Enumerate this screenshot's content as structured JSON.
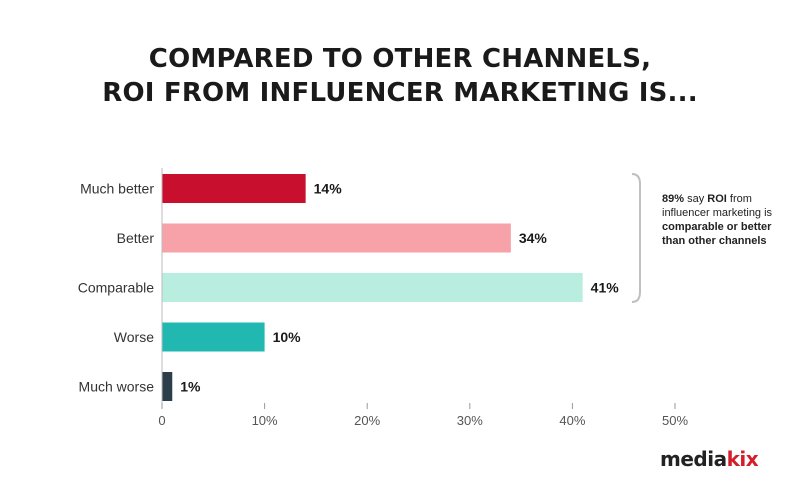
{
  "title_lines": [
    "COMPARED TO OTHER CHANNELS,",
    "ROI FROM INFLUENCER MARKETING IS..."
  ],
  "callout": {
    "bold_1": "89%",
    "text_1": " say ",
    "bold_2": "ROI",
    "text_2": " from influencer marketing is ",
    "bold_3": "comparable or better than other channels"
  },
  "logo": {
    "part1": "media",
    "part2": "kix"
  },
  "colors": {
    "much_better": "#c8102e",
    "better": "#f7a1a8",
    "comparable": "#b8ede0",
    "worse": "#22b8b2",
    "much_worse": "#2c3e4a",
    "bracket": "#c0c0c0"
  },
  "chart_data": {
    "type": "bar",
    "orientation": "horizontal",
    "categories": [
      "Much better",
      "Better",
      "Comparable",
      "Worse",
      "Much worse"
    ],
    "values": [
      14,
      34,
      41,
      10,
      1
    ],
    "value_labels": [
      "14%",
      "34%",
      "41%",
      "10%",
      "1%"
    ],
    "xlim": [
      0,
      50
    ],
    "x_ticks": [
      0,
      10,
      20,
      30,
      40,
      50
    ],
    "x_tick_labels": [
      "0",
      "10%",
      "20%",
      "30%",
      "40%",
      "50%"
    ],
    "grid": false
  }
}
